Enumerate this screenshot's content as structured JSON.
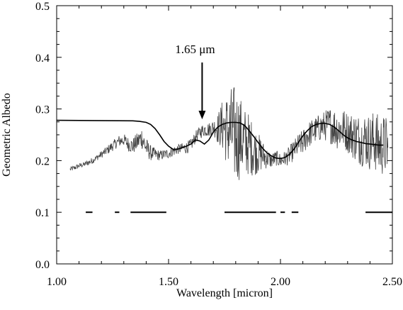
{
  "chart_data": {
    "type": "line",
    "title": "",
    "xlabel": "Wavelength [micron]",
    "ylabel": "Geometric Albedo",
    "xlim": [
      1.0,
      2.5
    ],
    "ylim": [
      0.0,
      0.5
    ],
    "x_ticks": [
      1.0,
      1.5,
      2.0,
      2.5
    ],
    "x_tick_labels": [
      "1.00",
      "1.50",
      "2.00",
      "2.50"
    ],
    "y_ticks": [
      0.0,
      0.1,
      0.2,
      0.3,
      0.4,
      0.5
    ],
    "y_tick_labels": [
      "0.0",
      "0.1",
      "0.2",
      "0.3",
      "0.4",
      "0.5"
    ],
    "grid": false,
    "legend": "none",
    "colors": {
      "observed": "#444444",
      "model": "#000000",
      "bands": "#000000"
    },
    "series": [
      {
        "role": "observed",
        "x": [
          1.06,
          1.08,
          1.1,
          1.12,
          1.14,
          1.16,
          1.18,
          1.2,
          1.22,
          1.24,
          1.26,
          1.28,
          1.3,
          1.32,
          1.34,
          1.36,
          1.38,
          1.4,
          1.42,
          1.44,
          1.46,
          1.48,
          1.5,
          1.52,
          1.54,
          1.56,
          1.58,
          1.6,
          1.62,
          1.64,
          1.66,
          1.68,
          1.7,
          1.72,
          1.74,
          1.76,
          1.78,
          1.8,
          1.82,
          1.84,
          1.86,
          1.88,
          1.9,
          1.92,
          1.94,
          1.96,
          1.98,
          2.0,
          2.02,
          2.04,
          2.06,
          2.08,
          2.1,
          2.12,
          2.14,
          2.16,
          2.18,
          2.2,
          2.22,
          2.24,
          2.26,
          2.28,
          2.3,
          2.32,
          2.34,
          2.36,
          2.38,
          2.4,
          2.42,
          2.44,
          2.46,
          2.48
        ],
        "y": [
          0.183,
          0.186,
          0.19,
          0.192,
          0.196,
          0.2,
          0.206,
          0.212,
          0.218,
          0.225,
          0.232,
          0.238,
          0.24,
          0.232,
          0.228,
          0.236,
          0.245,
          0.225,
          0.215,
          0.212,
          0.21,
          0.212,
          0.214,
          0.218,
          0.222,
          0.224,
          0.225,
          0.23,
          0.245,
          0.255,
          0.26,
          0.26,
          0.265,
          0.262,
          0.268,
          0.26,
          0.255,
          0.25,
          0.245,
          0.235,
          0.232,
          0.22,
          0.215,
          0.21,
          0.205,
          0.2,
          0.205,
          0.2,
          0.204,
          0.21,
          0.22,
          0.23,
          0.235,
          0.248,
          0.255,
          0.26,
          0.265,
          0.268,
          0.27,
          0.265,
          0.26,
          0.262,
          0.255,
          0.25,
          0.245,
          0.24,
          0.242,
          0.235,
          0.24,
          0.228,
          0.23,
          0.225
        ],
        "noise_amplitude": [
          0.005,
          0.005,
          0.005,
          0.005,
          0.006,
          0.006,
          0.006,
          0.007,
          0.008,
          0.01,
          0.01,
          0.012,
          0.012,
          0.014,
          0.016,
          0.018,
          0.022,
          0.02,
          0.015,
          0.012,
          0.01,
          0.01,
          0.01,
          0.01,
          0.01,
          0.01,
          0.012,
          0.012,
          0.012,
          0.012,
          0.014,
          0.014,
          0.015,
          0.03,
          0.05,
          0.07,
          0.09,
          0.1,
          0.08,
          0.07,
          0.06,
          0.05,
          0.04,
          0.03,
          0.02,
          0.015,
          0.015,
          0.015,
          0.015,
          0.018,
          0.02,
          0.022,
          0.025,
          0.026,
          0.026,
          0.026,
          0.028,
          0.03,
          0.035,
          0.04,
          0.04,
          0.04,
          0.04,
          0.045,
          0.05,
          0.05,
          0.055,
          0.055,
          0.06,
          0.06,
          0.06,
          0.06
        ]
      },
      {
        "role": "model",
        "x": [
          1.0,
          1.34,
          1.37,
          1.4,
          1.42,
          1.44,
          1.46,
          1.48,
          1.5,
          1.52,
          1.54,
          1.56,
          1.58,
          1.6,
          1.62,
          1.64,
          1.66,
          1.68,
          1.7,
          1.72,
          1.74,
          1.76,
          1.78,
          1.8,
          1.82,
          1.84,
          1.86,
          1.88,
          1.9,
          1.92,
          1.94,
          1.96,
          1.98,
          2.0,
          2.02,
          2.04,
          2.06,
          2.08,
          2.1,
          2.12,
          2.14,
          2.16,
          2.18,
          2.2,
          2.22,
          2.24,
          2.26,
          2.28,
          2.3,
          2.32,
          2.34,
          2.36,
          2.38,
          2.4,
          2.42,
          2.44,
          2.46
        ],
        "y": [
          0.278,
          0.277,
          0.276,
          0.274,
          0.27,
          0.262,
          0.25,
          0.237,
          0.228,
          0.222,
          0.222,
          0.225,
          0.228,
          0.232,
          0.24,
          0.238,
          0.232,
          0.24,
          0.255,
          0.265,
          0.27,
          0.273,
          0.274,
          0.274,
          0.273,
          0.268,
          0.258,
          0.247,
          0.235,
          0.224,
          0.215,
          0.209,
          0.205,
          0.204,
          0.206,
          0.212,
          0.222,
          0.235,
          0.248,
          0.258,
          0.266,
          0.27,
          0.272,
          0.272,
          0.27,
          0.265,
          0.258,
          0.25,
          0.244,
          0.24,
          0.237,
          0.235,
          0.233,
          0.232,
          0.231,
          0.23,
          0.23
        ]
      }
    ],
    "bands": [
      {
        "x": [
          1.13,
          1.16
        ],
        "y": 0.1
      },
      {
        "x": [
          1.26,
          1.28
        ],
        "y": 0.1
      },
      {
        "x": [
          1.33,
          1.49
        ],
        "y": 0.1
      },
      {
        "x": [
          1.75,
          1.98
        ],
        "y": 0.1
      },
      {
        "x": [
          2.0,
          2.02
        ],
        "y": 0.1
      },
      {
        "x": [
          2.05,
          2.08
        ],
        "y": 0.1
      },
      {
        "x": [
          2.38,
          2.5
        ],
        "y": 0.1
      }
    ],
    "annotations": [
      {
        "text": "1.65 μm",
        "arrow_x": 1.65,
        "arrow_from_y": 0.39,
        "arrow_to_y": 0.28
      }
    ]
  }
}
